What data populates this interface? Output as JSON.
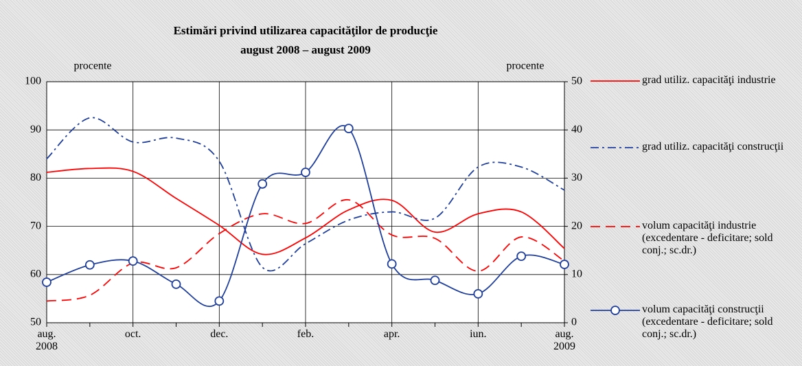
{
  "chart_data": {
    "type": "line",
    "title": "Estimări privind utilizarea capacităţilor de producţie",
    "subtitle": "august 2008 – august 2009",
    "y_label": "procente",
    "y2_label": "procente",
    "categories": [
      "aug. 2008",
      null,
      "oct.",
      null,
      "dec.",
      null,
      "feb.",
      null,
      "apr.",
      null,
      "iun.",
      null,
      "aug. 2009"
    ],
    "ylim": [
      50,
      100
    ],
    "yticks": [
      50,
      60,
      70,
      80,
      90,
      100
    ],
    "y2lim": [
      0,
      50
    ],
    "y2ticks": [
      0,
      10,
      20,
      30,
      40,
      50
    ],
    "grid": true,
    "legend": "right",
    "series": [
      {
        "name": "grad utiliz. capacităţi industrie",
        "color": "#ff0000",
        "style": "solid",
        "values": [
          81.2,
          82,
          81.4,
          75.8,
          70.2,
          64.2,
          67.6,
          73.4,
          75.4,
          68.8,
          72.6,
          73,
          65.4
        ]
      },
      {
        "name": "grad utiliz. capacităţi construcţii",
        "color": "#1f3e9c",
        "style": "dashdot",
        "values": [
          84,
          92.5,
          87.5,
          88.3,
          83.5,
          61.5,
          66.4,
          71.3,
          73,
          71.7,
          82.3,
          82.3,
          77.5
        ]
      },
      {
        "name": "volum capacităţi industrie (excedentare - deficitare; sold conj.; sc.dr.)",
        "color": "#ff0000",
        "style": "dash",
        "axis": "y2",
        "values": [
          4.5,
          5.7,
          12.4,
          11.4,
          18.5,
          22.6,
          20.6,
          25.5,
          18.2,
          17.5,
          10.7,
          17.8,
          12.8
        ]
      },
      {
        "name": "volum capacităţi construcţii (excedentare - deficitare; sold conj.; sc.dr.)",
        "color": "#1f3e9c",
        "style": "solid",
        "marker": "circle",
        "axis": "y2",
        "values": [
          8.4,
          12,
          12.8,
          8,
          4.5,
          28.8,
          31.2,
          40.3,
          12.2,
          8.8,
          6,
          13.8,
          12.1
        ]
      }
    ]
  }
}
